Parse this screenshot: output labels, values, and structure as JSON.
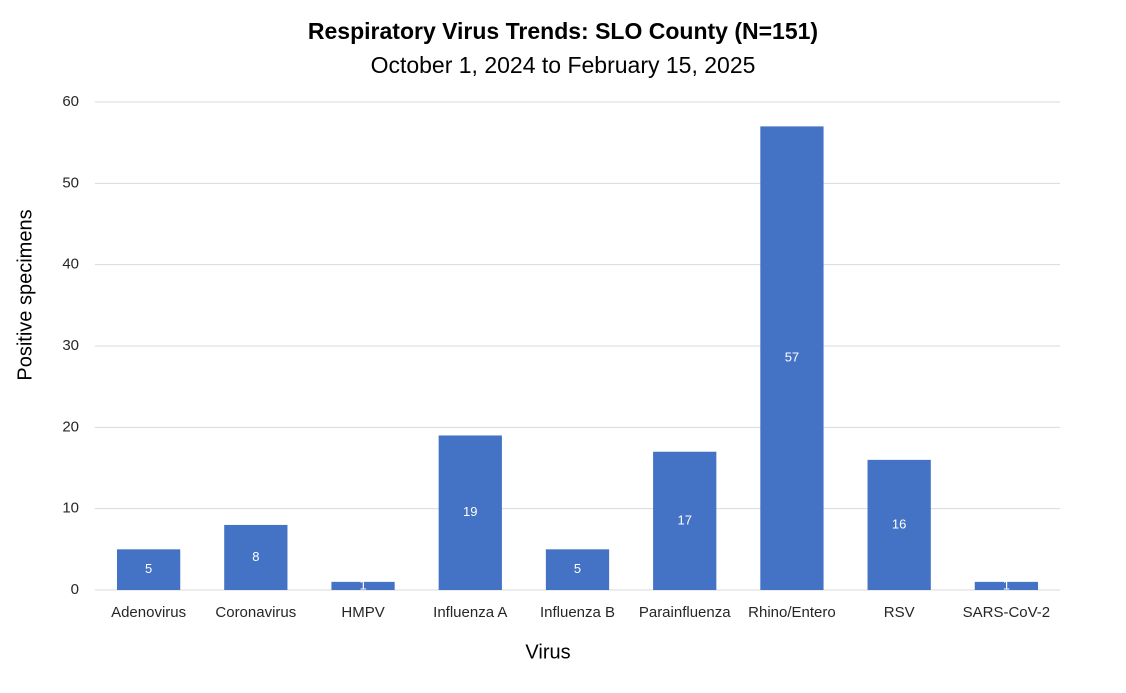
{
  "chart_data": {
    "type": "bar",
    "title": "Respiratory Virus Trends: SLO County (N=151)",
    "subtitle": "October 1, 2024 to February 15, 2025",
    "x_label": "Virus",
    "y_label": "Positive specimens",
    "categories": [
      "Adenovirus",
      "Coronavirus",
      "HMPV",
      "Influenza A",
      "Influenza B",
      "Parainfluenza",
      "Rhino/Entero",
      "RSV",
      "SARS-CoV-2"
    ],
    "values": [
      5,
      8,
      1,
      19,
      5,
      17,
      57,
      16,
      1
    ],
    "color": "#4472c4",
    "ylim": [
      0,
      60
    ],
    "yticks": [
      0,
      10,
      20,
      30,
      40,
      50,
      60
    ],
    "grid": true
  }
}
